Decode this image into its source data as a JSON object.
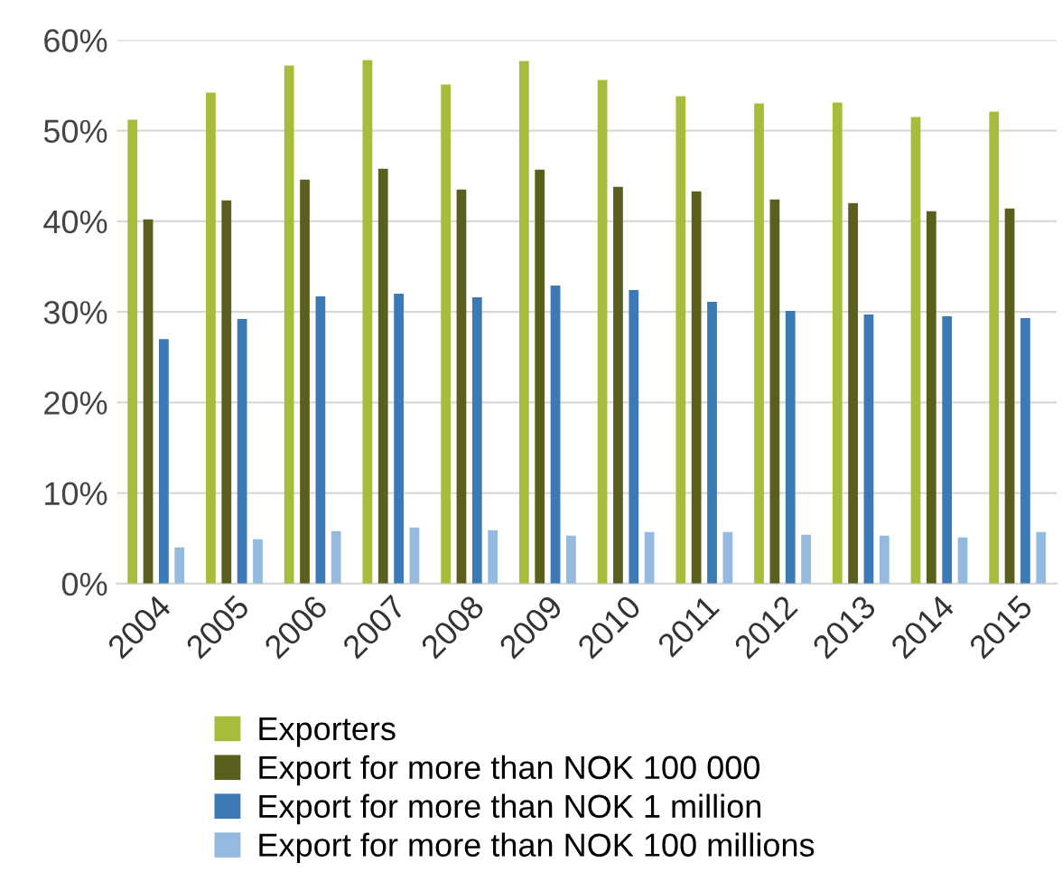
{
  "chart_data": {
    "type": "bar",
    "categories": [
      "2004",
      "2005",
      "2006",
      "2007",
      "2008",
      "2009",
      "2010",
      "2011",
      "2012",
      "2013",
      "2014",
      "2015"
    ],
    "series": [
      {
        "name": "Exporters",
        "color": "#a5bd3a",
        "values": [
          51.2,
          54.2,
          57.2,
          57.8,
          55.1,
          57.7,
          55.6,
          53.8,
          53.0,
          53.1,
          51.5,
          52.1
        ]
      },
      {
        "name": "Export for more than NOK 100 000",
        "color": "#5b5f1d",
        "values": [
          40.2,
          42.3,
          44.6,
          45.8,
          43.5,
          45.7,
          43.8,
          43.3,
          42.4,
          42.0,
          41.1,
          41.4
        ]
      },
      {
        "name": "Export for more than NOK 1 million",
        "color": "#3b7ab5",
        "values": [
          27.0,
          29.2,
          31.7,
          32.0,
          31.6,
          32.9,
          32.4,
          31.1,
          30.1,
          29.7,
          29.5,
          29.3
        ]
      },
      {
        "name": "Export for more than NOK 100 millions",
        "color": "#95badf",
        "values": [
          4.0,
          4.9,
          5.8,
          6.2,
          5.9,
          5.3,
          5.7,
          5.7,
          5.4,
          5.3,
          5.1,
          5.7
        ]
      }
    ],
    "ylim": [
      0,
      60
    ],
    "yticks": [
      {
        "value": 0,
        "label": "0%"
      },
      {
        "value": 10,
        "label": "10%"
      },
      {
        "value": 20,
        "label": "20%"
      },
      {
        "value": 30,
        "label": "30%"
      },
      {
        "value": 40,
        "label": "40%"
      },
      {
        "value": 50,
        "label": "50%"
      },
      {
        "value": 60,
        "label": "60%"
      }
    ],
    "grid": "y",
    "legend": "bottom"
  }
}
